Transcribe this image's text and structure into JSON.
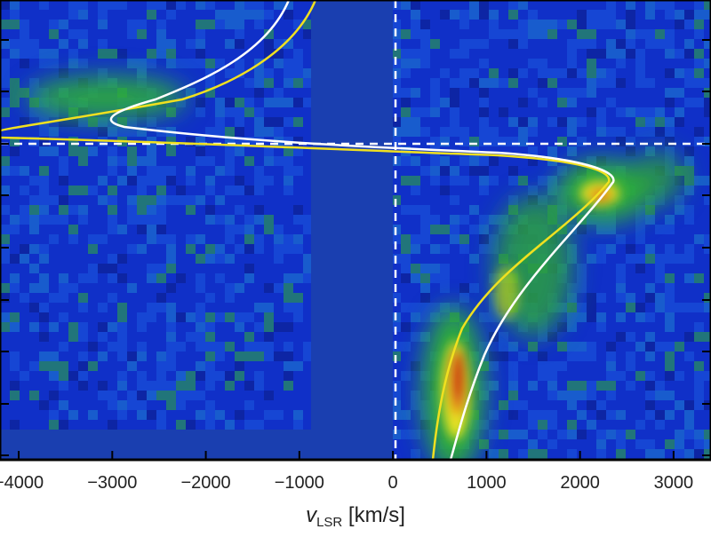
{
  "chart_data": {
    "type": "heatmap",
    "title": "",
    "xlabel": "v",
    "xlabel_sub": "LSR",
    "xlabel_units": " [km/s]",
    "ylabel": "",
    "xlim": [
      -4200,
      3400
    ],
    "x_ticks": [
      {
        "value": -4000,
        "label": "−4000"
      },
      {
        "value": -3000,
        "label": "−3000"
      },
      {
        "value": -2000,
        "label": "−2000"
      },
      {
        "value": -1000,
        "label": "−1000"
      },
      {
        "value": 0,
        "label": "0"
      },
      {
        "value": 1000,
        "label": "1000"
      },
      {
        "value": 2000,
        "label": "2000"
      },
      {
        "value": 3000,
        "label": "3000"
      }
    ],
    "y_tick_labels_visible": false,
    "colormap": [
      "#1030c8",
      "#1e5ad8",
      "#2fae3a",
      "#e8e020",
      "#e07a1a",
      "#c81818"
    ],
    "reference_lines": {
      "vertical_x": 0,
      "horizontal": true,
      "style": "dashed",
      "color": "#ffffff"
    },
    "model_curves": [
      {
        "color": "#ffffff"
      },
      {
        "color": "#f0e020"
      }
    ],
    "emission_features": [
      {
        "description_key": "lower-right-arc",
        "peak_x": 600,
        "peak_color": "#c81818"
      },
      {
        "description_key": "upper-right-knot",
        "peak_x": 2100,
        "peak_color": "#e07a1a"
      },
      {
        "description_key": "upper-left-blob",
        "peak_x": -3200,
        "peak_color": "#2fae3a"
      }
    ]
  }
}
